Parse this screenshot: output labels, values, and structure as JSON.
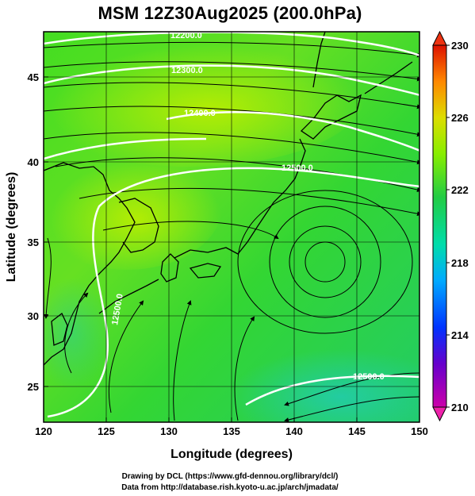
{
  "title": "MSM 12Z30Aug2025 (200.0hPa)",
  "axes": {
    "x_label": "Longitude (degrees)",
    "y_label": "Latitude  (degrees)",
    "x_ticks": [
      "120",
      "125",
      "130",
      "135",
      "140",
      "145",
      "150"
    ],
    "y_ticks": [
      "25",
      "30",
      "35",
      "40",
      "45"
    ]
  },
  "colorbar": {
    "ticks": [
      "230",
      "226",
      "222",
      "218",
      "214",
      "210"
    ],
    "max": "230",
    "min": "210",
    "colors": [
      "#cc00aa",
      "#0033ff",
      "#00ccff",
      "#00dd88",
      "#33cc33",
      "#88ee00",
      "#dddd00",
      "#ffaa00",
      "#ff2200",
      "#cc0000"
    ]
  },
  "contours": {
    "labels": [
      "12200.0",
      "12300.0",
      "12400.0",
      "12500.0",
      "12500.0",
      "12500.0"
    ],
    "color": "#ffffff"
  },
  "credits": {
    "line1": "Drawing by DCL (https://www.gfd-dennou.org/library/dcl/)",
    "line2": "Data from http://database.rish.kyoto-u.ac.jp/arch/jmadata/"
  }
}
